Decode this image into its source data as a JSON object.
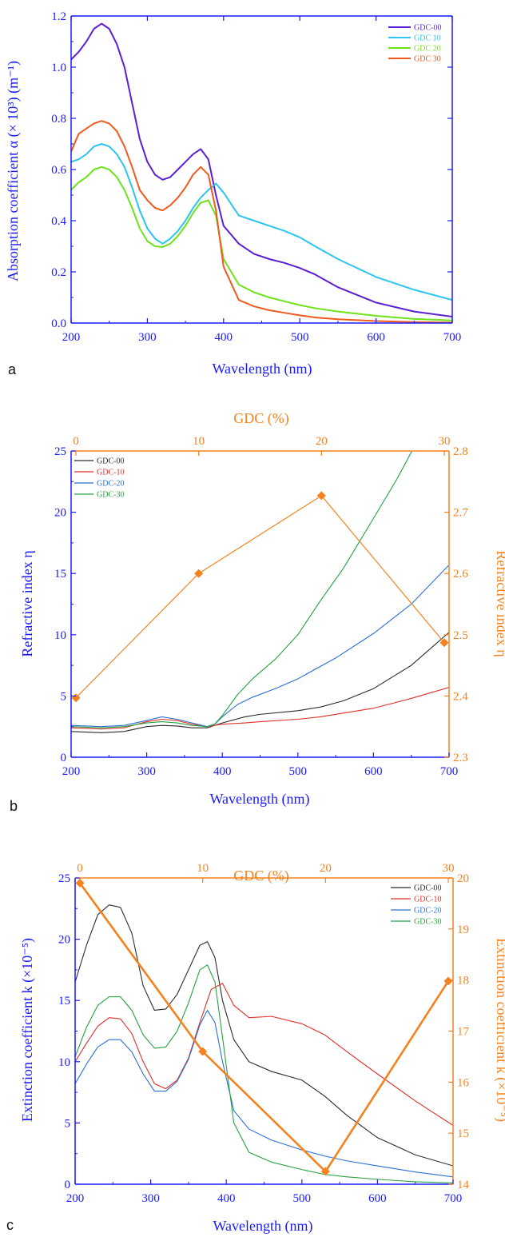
{
  "panels": [
    {
      "letter": "a",
      "legend": [
        "GDC-00",
        "GDC 10",
        "GDC 20",
        "GDC 30"
      ]
    },
    {
      "letter": "b",
      "legend": [
        "GDC-00",
        "GDC-10",
        "GDC-20",
        "GDC-30"
      ]
    },
    {
      "letter": "c",
      "legend": [
        "GDC-00",
        "GDC-10",
        "GDC-20",
        "GDC-30"
      ]
    }
  ],
  "chart_data": [
    {
      "type": "line",
      "xlabel": "Wavelength (nm)",
      "ylabel": "Absorption coefficient α (× 10³) (m⁻¹)",
      "xlim": [
        200,
        700
      ],
      "ylim": [
        0,
        1.2
      ],
      "xticks": [
        "200",
        "300",
        "400",
        "500",
        "600",
        "700"
      ],
      "yticks": [
        "0.0",
        "0.2",
        "0.4",
        "0.6",
        "0.8",
        "1.0",
        "1.2"
      ],
      "legend_position": "top-right",
      "series": [
        {
          "name": "GDC-00",
          "color": "#5b1fd6",
          "x": [
            200,
            210,
            220,
            230,
            240,
            250,
            260,
            270,
            280,
            290,
            300,
            310,
            320,
            330,
            340,
            350,
            360,
            370,
            380,
            390,
            400,
            420,
            440,
            460,
            480,
            500,
            520,
            550,
            600,
            650,
            700
          ],
          "y": [
            1.03,
            1.06,
            1.1,
            1.15,
            1.17,
            1.15,
            1.09,
            1.0,
            0.86,
            0.72,
            0.63,
            0.58,
            0.56,
            0.57,
            0.6,
            0.63,
            0.66,
            0.68,
            0.64,
            0.5,
            0.38,
            0.31,
            0.27,
            0.25,
            0.235,
            0.215,
            0.19,
            0.14,
            0.08,
            0.045,
            0.025
          ]
        },
        {
          "name": "GDC 10",
          "color": "#2cc4f0",
          "x": [
            200,
            210,
            220,
            230,
            240,
            250,
            260,
            270,
            280,
            290,
            300,
            310,
            320,
            330,
            340,
            350,
            360,
            370,
            380,
            390,
            400,
            420,
            440,
            460,
            480,
            500,
            520,
            550,
            600,
            650,
            700
          ],
          "y": [
            0.63,
            0.64,
            0.66,
            0.69,
            0.7,
            0.69,
            0.66,
            0.61,
            0.53,
            0.44,
            0.37,
            0.33,
            0.31,
            0.33,
            0.36,
            0.4,
            0.45,
            0.49,
            0.52,
            0.545,
            0.51,
            0.42,
            0.4,
            0.38,
            0.36,
            0.335,
            0.3,
            0.25,
            0.18,
            0.13,
            0.09
          ]
        },
        {
          "name": "GDC 20",
          "color": "#6ee21a",
          "x": [
            200,
            210,
            220,
            230,
            240,
            250,
            260,
            270,
            280,
            290,
            300,
            310,
            320,
            330,
            340,
            350,
            360,
            370,
            380,
            390,
            400,
            420,
            440,
            460,
            480,
            500,
            520,
            550,
            600,
            650,
            700
          ],
          "y": [
            0.52,
            0.55,
            0.57,
            0.6,
            0.61,
            0.6,
            0.57,
            0.52,
            0.45,
            0.37,
            0.32,
            0.3,
            0.297,
            0.31,
            0.34,
            0.38,
            0.43,
            0.47,
            0.48,
            0.42,
            0.25,
            0.15,
            0.12,
            0.1,
            0.085,
            0.07,
            0.058,
            0.045,
            0.028,
            0.016,
            0.01
          ]
        },
        {
          "name": "GDC 30",
          "color": "#f05a1e",
          "x": [
            200,
            210,
            220,
            230,
            240,
            250,
            260,
            270,
            280,
            290,
            300,
            310,
            320,
            330,
            340,
            350,
            360,
            370,
            380,
            390,
            400,
            420,
            440,
            460,
            480,
            500,
            520,
            550,
            600,
            650,
            700
          ],
          "y": [
            0.67,
            0.74,
            0.76,
            0.78,
            0.79,
            0.78,
            0.75,
            0.69,
            0.61,
            0.52,
            0.48,
            0.45,
            0.44,
            0.46,
            0.49,
            0.53,
            0.58,
            0.61,
            0.58,
            0.44,
            0.22,
            0.09,
            0.065,
            0.05,
            0.04,
            0.03,
            0.022,
            0.015,
            0.008,
            0.004,
            0.002
          ]
        }
      ]
    },
    {
      "type": "line",
      "xlabel": "Wavelength (nm)",
      "ylabel": "Refractive index η",
      "x2label": "GDC (%)",
      "y2label": "Refractive index η",
      "xlim": [
        200,
        700
      ],
      "ylim": [
        0,
        25
      ],
      "x2lim": [
        0,
        30
      ],
      "y2lim": [
        2.3,
        2.8
      ],
      "xticks": [
        "200",
        "300",
        "400",
        "500",
        "600",
        "700"
      ],
      "yticks": [
        "0",
        "5",
        "10",
        "15",
        "20",
        "25"
      ],
      "x2ticks": [
        "0",
        "10",
        "20",
        "30"
      ],
      "y2ticks": [
        "2.3",
        "2.4",
        "2.5",
        "2.6",
        "2.7",
        "2.8"
      ],
      "legend_position": "top-left",
      "series": [
        {
          "name": "GDC-00",
          "color": "#2b2b2b",
          "x": [
            200,
            240,
            270,
            300,
            320,
            340,
            360,
            380,
            400,
            430,
            450,
            500,
            530,
            560,
            600,
            650,
            700
          ],
          "y": [
            2.1,
            2.0,
            2.1,
            2.5,
            2.6,
            2.55,
            2.4,
            2.4,
            2.8,
            3.3,
            3.5,
            3.8,
            4.1,
            4.6,
            5.6,
            7.5,
            10.2
          ]
        },
        {
          "name": "GDC-10",
          "color": "#e0302a",
          "x": [
            200,
            240,
            270,
            300,
            320,
            340,
            360,
            380,
            400,
            430,
            450,
            500,
            530,
            560,
            600,
            650,
            700
          ],
          "y": [
            2.4,
            2.3,
            2.4,
            2.9,
            3.1,
            3.0,
            2.7,
            2.5,
            2.7,
            2.8,
            2.9,
            3.1,
            3.3,
            3.6,
            4.0,
            4.8,
            5.7
          ]
        },
        {
          "name": "GDC-20",
          "color": "#2a6fd6",
          "x": [
            200,
            240,
            270,
            300,
            320,
            340,
            360,
            380,
            390,
            400,
            420,
            440,
            470,
            500,
            550,
            600,
            650,
            700
          ],
          "y": [
            2.6,
            2.5,
            2.6,
            3.0,
            3.3,
            3.1,
            2.8,
            2.5,
            2.7,
            3.3,
            4.3,
            4.9,
            5.6,
            6.4,
            8.1,
            10.1,
            12.5,
            15.7
          ]
        },
        {
          "name": "GDC-30",
          "color": "#28a040",
          "x": [
            200,
            240,
            270,
            300,
            320,
            340,
            360,
            380,
            390,
            400,
            420,
            440,
            470,
            500,
            530,
            560,
            600,
            630,
            651
          ],
          "y": [
            2.5,
            2.4,
            2.5,
            2.8,
            2.9,
            2.8,
            2.6,
            2.5,
            2.7,
            3.4,
            5.1,
            6.4,
            8.0,
            10.0,
            12.8,
            15.4,
            19.5,
            22.6,
            25.0
          ]
        }
      ],
      "secondary_series": {
        "color": "#f5821f",
        "marker": "diamond",
        "gdc_percent": [
          0,
          10,
          20,
          30
        ],
        "refractive_index": [
          2.397,
          2.6,
          2.727,
          2.487
        ]
      }
    },
    {
      "type": "line",
      "xlabel": "Wavelength (nm)",
      "ylabel": "Extinction coefficient k (×10⁻⁵)",
      "x2label": "GDC (%)",
      "y2label": "Extinction coefficient k (×10⁻⁵)",
      "xlim": [
        200,
        700
      ],
      "ylim": [
        0,
        25
      ],
      "x2lim": [
        0,
        30
      ],
      "y2lim": [
        14,
        20
      ],
      "xticks": [
        "200",
        "300",
        "400",
        "500",
        "600",
        "700"
      ],
      "yticks": [
        "0",
        "5",
        "10",
        "15",
        "20",
        "25"
      ],
      "x2ticks": [
        "0",
        "10",
        "20",
        "30"
      ],
      "y2ticks": [
        "14",
        "15",
        "16",
        "17",
        "18",
        "19",
        "20"
      ],
      "legend_position": "top-right",
      "series": [
        {
          "name": "GDC-00",
          "color": "#2b2b2b",
          "x": [
            200,
            215,
            230,
            245,
            260,
            275,
            290,
            305,
            320,
            335,
            350,
            365,
            375,
            385,
            395,
            410,
            430,
            460,
            500,
            530,
            560,
            600,
            650,
            700
          ],
          "y": [
            16.5,
            19.5,
            22.0,
            22.8,
            22.6,
            20.5,
            16.2,
            14.2,
            14.3,
            15.5,
            17.5,
            19.5,
            19.8,
            18.5,
            15.0,
            11.8,
            10.0,
            9.2,
            8.5,
            7.2,
            5.6,
            3.8,
            2.4,
            1.5
          ]
        },
        {
          "name": "GDC-10",
          "color": "#e0302a",
          "x": [
            200,
            215,
            230,
            245,
            260,
            275,
            290,
            305,
            320,
            335,
            350,
            365,
            380,
            395,
            410,
            430,
            460,
            500,
            530,
            560,
            600,
            650,
            700
          ],
          "y": [
            10.0,
            11.5,
            12.9,
            13.6,
            13.5,
            12.3,
            10.0,
            8.2,
            7.8,
            8.5,
            10.3,
            13.2,
            15.9,
            16.4,
            14.6,
            13.6,
            13.7,
            13.1,
            12.2,
            10.8,
            9.0,
            6.8,
            4.8
          ]
        },
        {
          "name": "GDC-20",
          "color": "#2a6fd6",
          "x": [
            200,
            215,
            230,
            245,
            260,
            275,
            290,
            305,
            320,
            335,
            350,
            365,
            375,
            385,
            395,
            410,
            430,
            460,
            500,
            530,
            560,
            600,
            650,
            700
          ],
          "y": [
            8.2,
            9.8,
            11.2,
            11.8,
            11.8,
            10.8,
            9.0,
            7.6,
            7.6,
            8.4,
            10.2,
            13.0,
            14.2,
            13.2,
            10.0,
            6.0,
            4.5,
            3.6,
            2.8,
            2.3,
            1.9,
            1.5,
            1.0,
            0.6
          ]
        },
        {
          "name": "GDC-30",
          "color": "#28a040",
          "x": [
            200,
            215,
            230,
            245,
            260,
            275,
            290,
            305,
            320,
            335,
            350,
            365,
            375,
            385,
            395,
            410,
            430,
            460,
            500,
            530,
            560,
            600,
            650,
            700
          ],
          "y": [
            10.4,
            12.8,
            14.6,
            15.3,
            15.3,
            14.2,
            12.2,
            11.1,
            11.2,
            12.5,
            14.8,
            17.5,
            17.9,
            16.5,
            12.0,
            5.0,
            2.6,
            1.8,
            1.2,
            0.8,
            0.6,
            0.4,
            0.2,
            0.1
          ]
        }
      ],
      "secondary_series": {
        "color": "#f5821f",
        "marker": "diamond",
        "gdc_percent": [
          0,
          10,
          20,
          30
        ],
        "extinction_coefficient": [
          19.9,
          16.6,
          14.25,
          17.98
        ]
      }
    }
  ]
}
